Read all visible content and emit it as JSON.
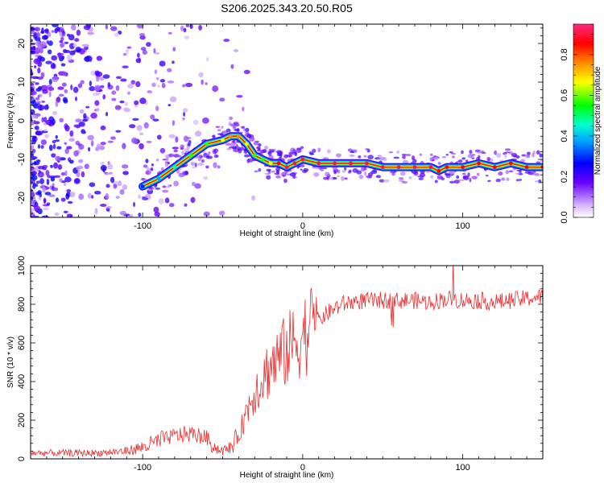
{
  "figure": {
    "title": "S206.2025.343.20.50.R05"
  },
  "chart_data": [
    {
      "type": "heatmap",
      "xlabel": "Height of straight line (km)",
      "ylabel": "Frequency (Hz)",
      "xlim": [
        -170,
        150
      ],
      "ylim": [
        -25,
        25
      ],
      "xticks": [
        -100,
        0,
        100
      ],
      "yticks": [
        20,
        10,
        0,
        -10,
        -20
      ],
      "colorbar": {
        "label": "Normalized spectral amplitude",
        "range": [
          0.0,
          0.95
        ],
        "ticks": [
          "0.0",
          "0.2",
          "0.4",
          "0.6",
          "0.8"
        ]
      },
      "ridge": {
        "x": [
          -100,
          -90,
          -80,
          -70,
          -60,
          -50,
          -45,
          -40,
          -35,
          -30,
          -25,
          -20,
          -15,
          -10,
          -5,
          0,
          10,
          20,
          30,
          40,
          50,
          60,
          70,
          80,
          85,
          90,
          100,
          110,
          120,
          130,
          140,
          150
        ],
        "y": [
          -17,
          -15,
          -12,
          -9,
          -6,
          -5,
          -4,
          -4,
          -6,
          -9,
          -10,
          -11,
          -11,
          -12,
          -11,
          -10,
          -11,
          -11,
          -11,
          -11,
          -12,
          -12,
          -12,
          -12,
          -13,
          -12,
          -12,
          -11,
          -12,
          -11,
          -12,
          -12
        ],
        "amplitude": [
          0.3,
          0.4,
          0.5,
          0.6,
          0.6,
          0.7,
          0.8,
          0.8,
          0.7,
          0.6,
          0.6,
          0.7,
          0.9,
          0.95,
          0.95,
          0.95,
          0.95,
          0.95,
          0.95,
          0.95,
          0.95,
          0.95,
          0.95,
          0.95,
          0.9,
          0.9,
          0.9,
          0.9,
          0.9,
          0.9,
          0.9,
          0.9
        ]
      },
      "grid": false
    },
    {
      "type": "line",
      "xlabel": "Height of straight line (km)",
      "ylabel": "SNR (10 * v/v)",
      "xlim": [
        -170,
        150
      ],
      "ylim": [
        0,
        1000
      ],
      "xticks": [
        -100,
        0,
        100
      ],
      "yticks": [
        0,
        200,
        400,
        600,
        800,
        1000
      ],
      "series": [
        {
          "color": "#ee2a2a",
          "x": [
            -170,
            -160,
            -150,
            -140,
            -130,
            -120,
            -110,
            -100,
            -90,
            -80,
            -70,
            -60,
            -55,
            -50,
            -45,
            -40,
            -35,
            -30,
            -25,
            -20,
            -15,
            -10,
            -5,
            0,
            5,
            10,
            15,
            20,
            25,
            30,
            40,
            50,
            60,
            70,
            80,
            90,
            100,
            110,
            120,
            130,
            140,
            150
          ],
          "values": [
            30,
            30,
            30,
            30,
            30,
            35,
            40,
            60,
            90,
            120,
            130,
            110,
            60,
            40,
            60,
            120,
            250,
            350,
            420,
            480,
            520,
            560,
            600,
            640,
            680,
            720,
            750,
            780,
            800,
            810,
            820,
            820,
            820,
            820,
            810,
            830,
            820,
            820,
            810,
            820,
            830,
            840
          ]
        }
      ],
      "grid": false
    }
  ]
}
